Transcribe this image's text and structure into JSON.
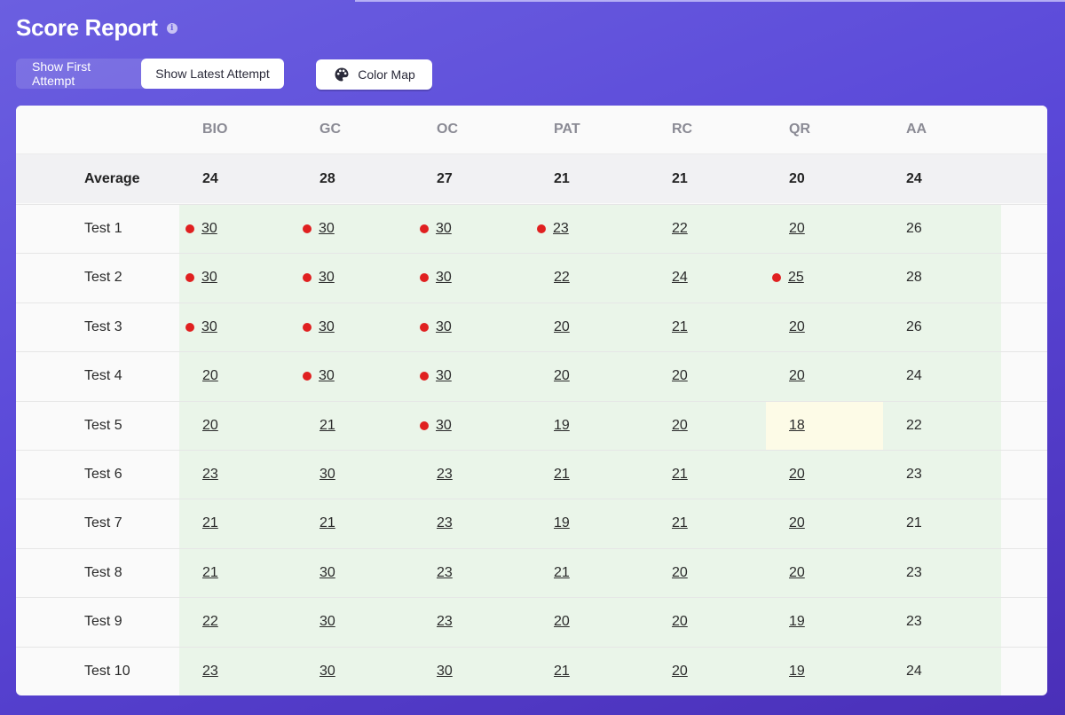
{
  "title": "Score Report",
  "info_icon": "info-icon",
  "toggle": {
    "first_label": "Show First Attempt",
    "latest_label": "Show Latest Attempt",
    "active": "latest"
  },
  "color_map": {
    "label": "Color Map",
    "icon": "palette-icon"
  },
  "columns": [
    "BIO",
    "GC",
    "OC",
    "PAT",
    "RC",
    "QR",
    "AA"
  ],
  "average": {
    "label": "Average",
    "values": [
      "24",
      "28",
      "27",
      "21",
      "21",
      "20",
      "24"
    ]
  },
  "rows": [
    {
      "label": "Test 1",
      "values": [
        "30",
        "30",
        "30",
        "23",
        "22",
        "20",
        "26"
      ],
      "flags": [
        true,
        true,
        true,
        true,
        false,
        false,
        false
      ]
    },
    {
      "label": "Test 2",
      "values": [
        "30",
        "30",
        "30",
        "22",
        "24",
        "25",
        "28"
      ],
      "flags": [
        true,
        true,
        true,
        false,
        false,
        true,
        false
      ]
    },
    {
      "label": "Test 3",
      "values": [
        "30",
        "30",
        "30",
        "20",
        "21",
        "20",
        "26"
      ],
      "flags": [
        true,
        true,
        true,
        false,
        false,
        false,
        false
      ]
    },
    {
      "label": "Test 4",
      "values": [
        "20",
        "30",
        "30",
        "20",
        "20",
        "20",
        "24"
      ],
      "flags": [
        false,
        true,
        true,
        false,
        false,
        false,
        false
      ]
    },
    {
      "label": "Test 5",
      "values": [
        "20",
        "21",
        "30",
        "19",
        "20",
        "18",
        "22"
      ],
      "flags": [
        false,
        false,
        true,
        false,
        false,
        false,
        false
      ],
      "highlight_col": 5
    },
    {
      "label": "Test 6",
      "values": [
        "23",
        "30",
        "23",
        "21",
        "21",
        "20",
        "23"
      ],
      "flags": [
        false,
        false,
        false,
        false,
        false,
        false,
        false
      ]
    },
    {
      "label": "Test 7",
      "values": [
        "21",
        "21",
        "23",
        "19",
        "21",
        "20",
        "21"
      ],
      "flags": [
        false,
        false,
        false,
        false,
        false,
        false,
        false
      ]
    },
    {
      "label": "Test 8",
      "values": [
        "21",
        "30",
        "23",
        "21",
        "20",
        "20",
        "23"
      ],
      "flags": [
        false,
        false,
        false,
        false,
        false,
        false,
        false
      ]
    },
    {
      "label": "Test 9",
      "values": [
        "22",
        "30",
        "23",
        "20",
        "20",
        "19",
        "23"
      ],
      "flags": [
        false,
        false,
        false,
        false,
        false,
        false,
        false
      ]
    },
    {
      "label": "Test 10",
      "values": [
        "23",
        "30",
        "30",
        "21",
        "20",
        "19",
        "24"
      ],
      "flags": [
        false,
        false,
        false,
        false,
        false,
        false,
        false
      ]
    }
  ],
  "colors": {
    "dot": "#e02020",
    "green_cell": "#eaf5e9",
    "highlight_cell": "#fdfbe7"
  }
}
